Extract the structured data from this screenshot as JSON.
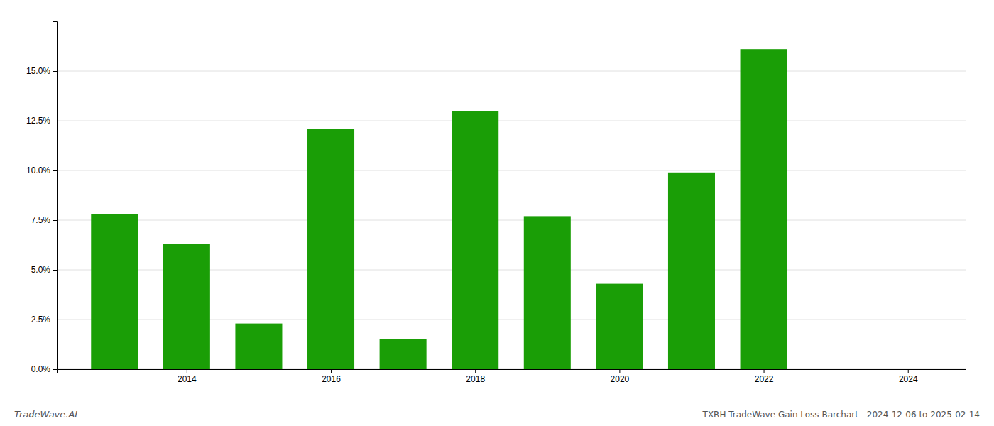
{
  "chart_data": {
    "type": "bar",
    "title": "TXRH TradeWave Gain Loss Barchart - 2024-12-06 to 2025-02-14",
    "annotations": [
      "TradeWave.AI"
    ],
    "x": [
      2013,
      2014,
      2015,
      2016,
      2017,
      2018,
      2019,
      2020,
      2021,
      2022
    ],
    "values": [
      0.078,
      0.063,
      0.023,
      0.121,
      0.015,
      0.13,
      0.077,
      0.043,
      0.099,
      0.161
    ],
    "color": "#1a9e06",
    "xlim": [
      2012.2,
      2024.8
    ],
    "xticks": [
      2014,
      2016,
      2018,
      2020,
      2022,
      2024
    ],
    "ylim": [
      0,
      0.175
    ],
    "yticks": [
      {
        "value": 0.0,
        "label": "0.0%"
      },
      {
        "value": 0.025,
        "label": "2.5%"
      },
      {
        "value": 0.05,
        "label": "5.0%"
      },
      {
        "value": 0.075,
        "label": "7.5%"
      },
      {
        "value": 0.1,
        "label": "10.0%"
      },
      {
        "value": 0.125,
        "label": "12.5%"
      },
      {
        "value": 0.15,
        "label": "15.0%"
      }
    ],
    "grid": true
  }
}
